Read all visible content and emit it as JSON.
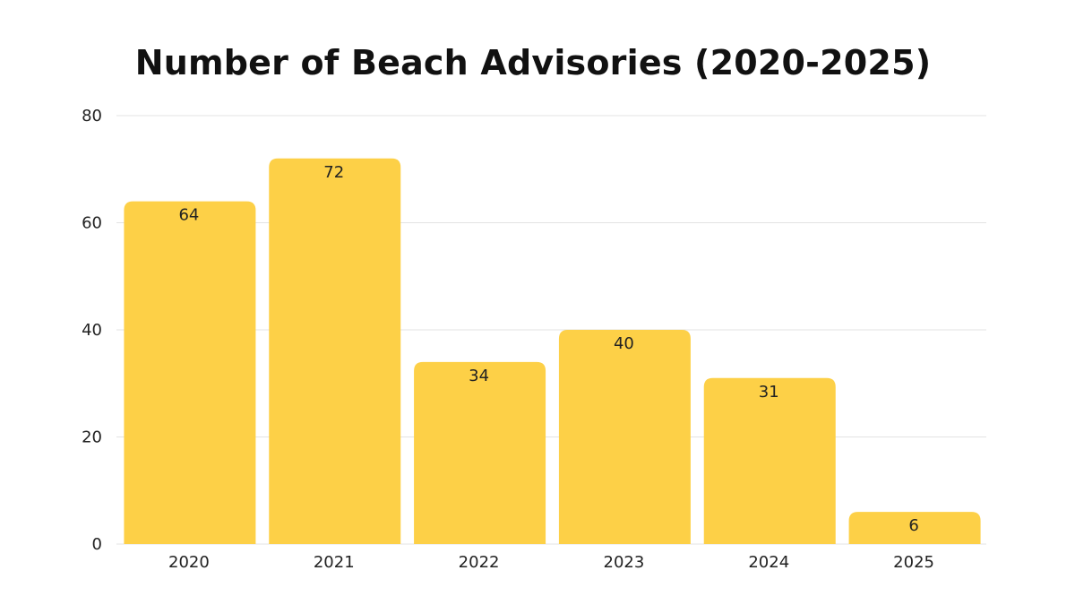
{
  "chart_data": {
    "type": "bar",
    "title": "Number of Beach Advisories (2020-2025)",
    "categories": [
      "2020",
      "2021",
      "2022",
      "2023",
      "2024",
      "2025"
    ],
    "values": [
      64,
      72,
      34,
      40,
      31,
      6
    ],
    "xlabel": "",
    "ylabel": "",
    "ylim": [
      0,
      80
    ],
    "yticks": [
      0,
      20,
      40,
      60,
      80
    ],
    "grid": true,
    "bar_color": "#FDD047",
    "grid_color": "#e3e3e3",
    "data_labels": true
  }
}
